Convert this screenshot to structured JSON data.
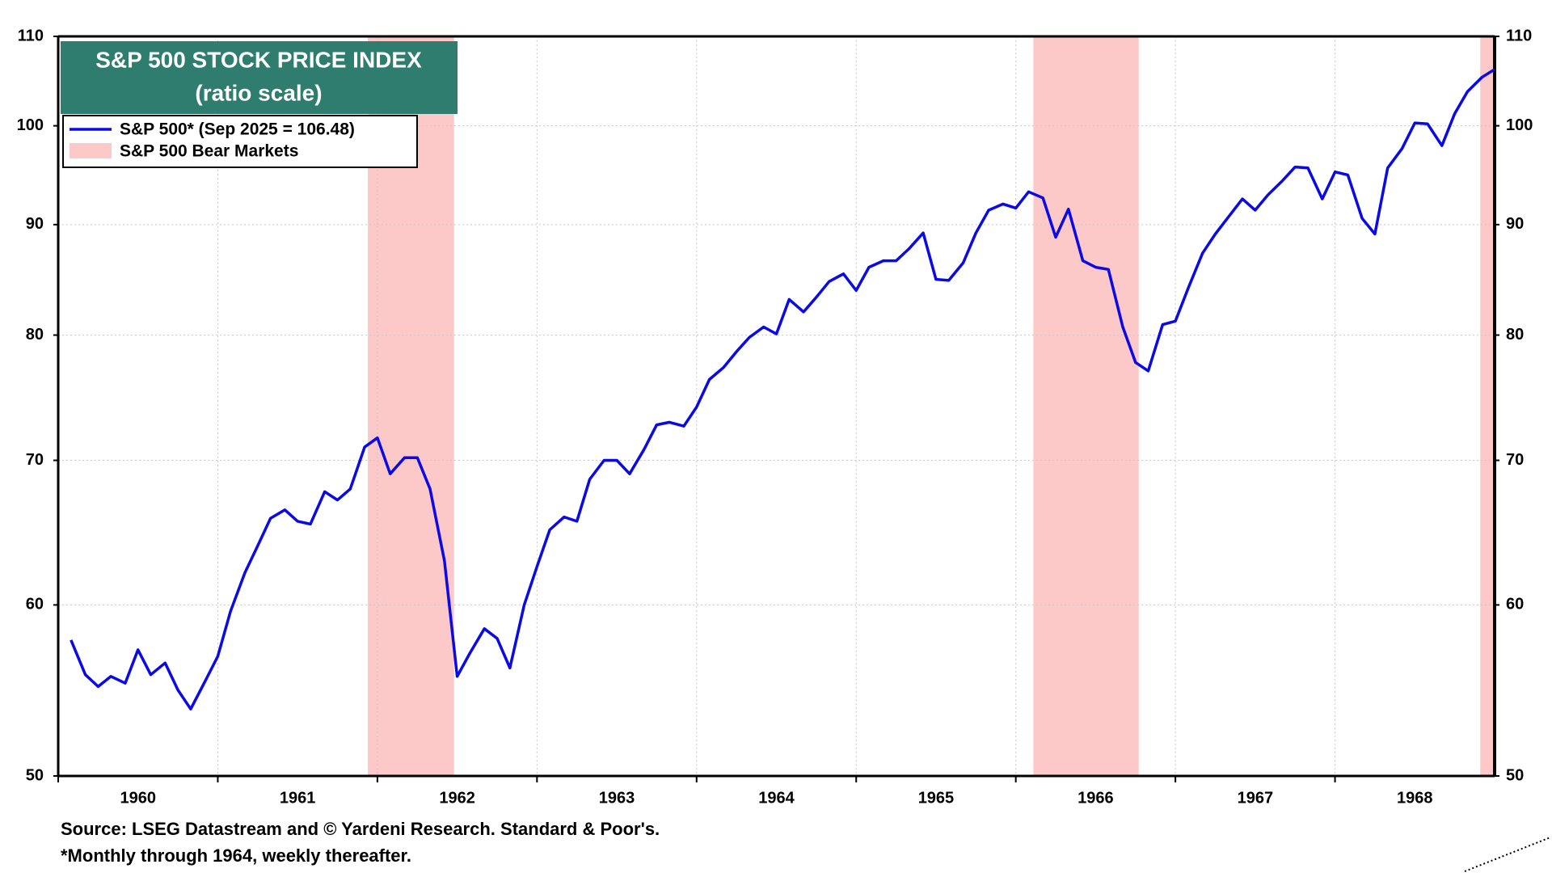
{
  "chart_data": {
    "type": "line",
    "title": "S&P 500 STOCK PRICE INDEX",
    "subtitle": "(ratio scale)",
    "source": "Source: LSEG Datastream and © Yardeni Research. Standard & Poor's.",
    "note": "*Monthly through 1964, weekly thereafter.",
    "log_scale": true,
    "grid": true,
    "xlim": [
      1960,
      1969
    ],
    "xticks": [
      {
        "value": 1960,
        "label": "1960"
      },
      {
        "value": 1961,
        "label": "1961"
      },
      {
        "value": 1962,
        "label": "1962"
      },
      {
        "value": 1963,
        "label": "1963"
      },
      {
        "value": 1964,
        "label": "1964"
      },
      {
        "value": 1965,
        "label": "1965"
      },
      {
        "value": 1966,
        "label": "1966"
      },
      {
        "value": 1967,
        "label": "1967"
      },
      {
        "value": 1968,
        "label": "1968"
      }
    ],
    "ylim": [
      50,
      110
    ],
    "yticks": [
      50,
      60,
      70,
      80,
      90,
      100,
      110
    ],
    "x": [
      1960.08,
      1960.17,
      1960.25,
      1960.33,
      1960.42,
      1960.5,
      1960.58,
      1960.67,
      1960.75,
      1960.83,
      1960.92,
      1961.0,
      1961.08,
      1961.17,
      1961.25,
      1961.33,
      1961.42,
      1961.5,
      1961.58,
      1961.67,
      1961.75,
      1961.83,
      1961.92,
      1962.0,
      1962.08,
      1962.17,
      1962.25,
      1962.33,
      1962.42,
      1962.5,
      1962.58,
      1962.67,
      1962.75,
      1962.83,
      1962.92,
      1963.0,
      1963.08,
      1963.17,
      1963.25,
      1963.33,
      1963.42,
      1963.5,
      1963.58,
      1963.67,
      1963.75,
      1963.83,
      1963.92,
      1964.0,
      1964.08,
      1964.17,
      1964.25,
      1964.33,
      1964.42,
      1964.5,
      1964.58,
      1964.67,
      1964.75,
      1964.83,
      1964.92,
      1965.0,
      1965.08,
      1965.17,
      1965.25,
      1965.33,
      1965.42,
      1965.5,
      1965.58,
      1965.67,
      1965.75,
      1965.83,
      1965.92,
      1966.0,
      1966.08,
      1966.17,
      1966.25,
      1966.33,
      1966.42,
      1966.5,
      1966.58,
      1966.67,
      1966.75,
      1966.83,
      1966.92,
      1967.0,
      1967.08,
      1967.17,
      1967.25,
      1967.33,
      1967.42,
      1967.5,
      1967.58,
      1967.67,
      1967.75,
      1967.83,
      1967.92,
      1968.0,
      1968.08,
      1968.17,
      1968.25,
      1968.33,
      1968.42,
      1968.5,
      1968.58,
      1968.67,
      1968.75,
      1968.83,
      1968.92,
      1969.0
    ],
    "series": [
      {
        "name": "S&P 500* (Sep 2025 = 106.48)",
        "color": "#0a0ae6",
        "values": [
          57.8,
          55.7,
          55.0,
          55.6,
          55.2,
          57.2,
          55.7,
          56.4,
          54.8,
          53.7,
          55.3,
          56.8,
          59.6,
          62.1,
          63.9,
          65.8,
          66.4,
          65.6,
          65.4,
          67.7,
          67.1,
          67.9,
          71.0,
          71.7,
          69.0,
          70.2,
          70.2,
          67.9,
          62.9,
          55.6,
          57.0,
          58.5,
          57.9,
          56.1,
          60.0,
          62.5,
          65.0,
          65.9,
          65.6,
          68.6,
          70.0,
          70.0,
          69.0,
          70.8,
          72.7,
          72.9,
          72.6,
          74.1,
          76.3,
          77.3,
          78.6,
          79.8,
          80.7,
          80.1,
          83.1,
          82.0,
          83.3,
          84.7,
          85.4,
          83.9,
          86.0,
          86.6,
          86.6,
          87.7,
          89.2,
          84.9,
          84.8,
          86.4,
          89.2,
          91.4,
          92.0,
          91.6,
          93.2,
          92.6,
          88.8,
          91.5,
          86.6,
          86.0,
          85.8,
          80.7,
          77.7,
          77.0,
          80.9,
          81.2,
          84.1,
          87.3,
          89.1,
          90.7,
          92.5,
          91.4,
          92.9,
          94.3,
          95.7,
          95.6,
          92.5,
          95.2,
          94.9,
          90.6,
          89.1,
          95.6,
          97.6,
          100.3,
          100.2,
          97.9,
          101.3,
          103.7,
          105.3,
          106.2
        ]
      }
    ],
    "shaded": {
      "name": "S&P 500 Bear Markets",
      "color": "#fcc8c8",
      "ranges": [
        [
          1961.94,
          1962.48
        ],
        [
          1966.11,
          1966.77
        ],
        [
          1968.91,
          1969.0
        ]
      ]
    }
  }
}
